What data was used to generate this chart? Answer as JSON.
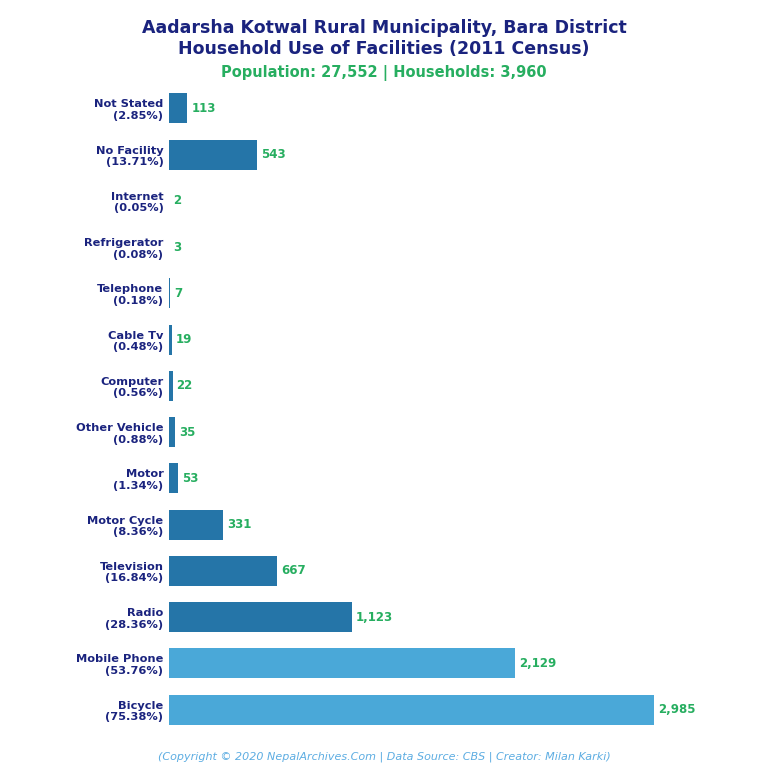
{
  "title_line1": "Aadarsha Kotwal Rural Municipality, Bara District",
  "title_line2": "Household Use of Facilities (2011 Census)",
  "subtitle": "Population: 27,552 | Households: 3,960",
  "categories": [
    "Not Stated\n(2.85%)",
    "No Facility\n(13.71%)",
    "Internet\n(0.05%)",
    "Refrigerator\n(0.08%)",
    "Telephone\n(0.18%)",
    "Cable Tv\n(0.48%)",
    "Computer\n(0.56%)",
    "Other Vehicle\n(0.88%)",
    "Motor\n(1.34%)",
    "Motor Cycle\n(8.36%)",
    "Television\n(16.84%)",
    "Radio\n(28.36%)",
    "Mobile Phone\n(53.76%)",
    "Bicycle\n(75.38%)"
  ],
  "values": [
    113,
    543,
    2,
    3,
    7,
    19,
    22,
    35,
    53,
    331,
    667,
    1123,
    2129,
    2985
  ],
  "bar_colors": [
    "#2575a8",
    "#2575a8",
    "#2575a8",
    "#2575a8",
    "#2575a8",
    "#2575a8",
    "#2575a8",
    "#2575a8",
    "#2575a8",
    "#2575a8",
    "#2575a8",
    "#2575a8",
    "#4aa8d8",
    "#4aa8d8"
  ],
  "value_color": "#27ae60",
  "title_color": "#1a237e",
  "subtitle_color": "#27ae60",
  "footer_color": "#5dade2",
  "footer_text": "(Copyright © 2020 NepalArchives.Com | Data Source: CBS | Creator: Milan Karki)",
  "xlim": [
    0,
    3400
  ],
  "background_color": "#ffffff"
}
